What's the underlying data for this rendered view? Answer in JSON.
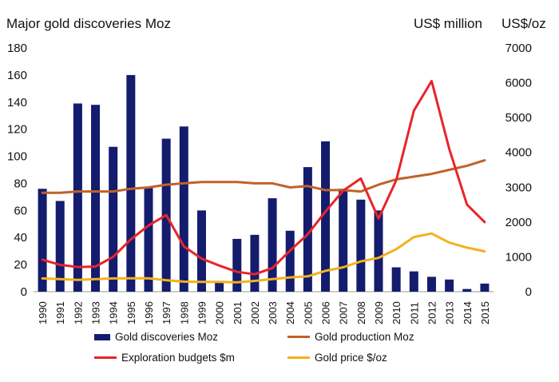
{
  "chart_data": {
    "type": "bar",
    "title": "Major gold discoveries Moz",
    "right_axis_labels": [
      "US$ million",
      "US$/oz"
    ],
    "categories": [
      "1990",
      "1991",
      "1992",
      "1993",
      "1994",
      "1995",
      "1996",
      "1997",
      "1998",
      "1999",
      "2000",
      "2001",
      "2002",
      "2003",
      "2004",
      "2005",
      "2006",
      "2007",
      "2008",
      "2009",
      "2010",
      "2011",
      "2012",
      "2013",
      "2014",
      "2015"
    ],
    "left_axis": {
      "ylim": [
        0,
        180
      ],
      "ticks": [
        0,
        20,
        40,
        60,
        80,
        100,
        120,
        140,
        160,
        180
      ]
    },
    "right_axis": {
      "ylim": [
        0,
        7000
      ],
      "ticks": [
        0,
        1000,
        2000,
        3000,
        4000,
        5000,
        6000,
        7000
      ]
    },
    "grid": false,
    "legend_position": "bottom",
    "series": [
      {
        "name": "Gold discoveries Moz",
        "kind": "bar",
        "axis": "left",
        "color": "#141c6e",
        "values": [
          76,
          67,
          139,
          138,
          107,
          160,
          77,
          113,
          122,
          60,
          8,
          39,
          42,
          69,
          45,
          92,
          111,
          76,
          68,
          60,
          18,
          15,
          11,
          9,
          2,
          6
        ]
      },
      {
        "name": "Gold production Moz",
        "kind": "line",
        "axis": "left",
        "color": "#c0622a",
        "values": [
          73,
          73,
          74,
          74,
          74,
          76,
          77,
          79,
          80,
          81,
          81,
          81,
          80,
          80,
          77,
          78,
          75,
          75,
          74,
          79,
          83,
          85,
          87,
          90,
          93,
          97
        ]
      },
      {
        "name": "Exploration budgets $m",
        "kind": "line",
        "axis": "right",
        "color": "#e8242a",
        "values": [
          920,
          770,
          710,
          720,
          1000,
          1500,
          1900,
          2200,
          1300,
          950,
          750,
          570,
          500,
          680,
          1180,
          1650,
          2300,
          2900,
          3250,
          2100,
          3200,
          5200,
          6050,
          4100,
          2500,
          2000
        ]
      },
      {
        "name": "Gold price $/oz",
        "kind": "line",
        "axis": "right",
        "color": "#f2b21a",
        "values": [
          380,
          360,
          340,
          360,
          380,
          385,
          385,
          330,
          290,
          280,
          280,
          270,
          310,
          360,
          410,
          440,
          600,
          700,
          870,
          970,
          1220,
          1570,
          1670,
          1410,
          1265,
          1160
        ]
      }
    ]
  }
}
